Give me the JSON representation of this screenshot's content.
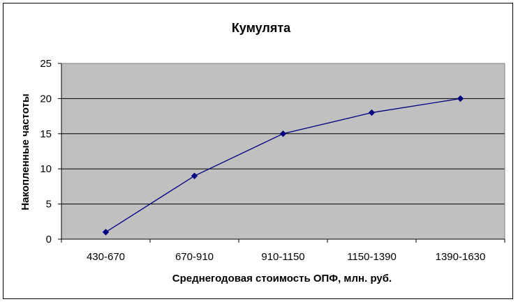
{
  "chart_data": {
    "type": "line",
    "title": "Кумулята",
    "xlabel": "Среднегодовая стоимость ОПФ, млн. руб.",
    "ylabel": "Накопленные частоты",
    "categories": [
      "430-670",
      "670-910",
      "910-1150",
      "1150-1390",
      "1390-1630"
    ],
    "series": [
      {
        "values": [
          1,
          9,
          15,
          18,
          20
        ]
      }
    ],
    "ylim": [
      0,
      25
    ],
    "yticks": [
      0,
      5,
      10,
      15,
      20,
      25
    ],
    "grid": true,
    "legend": "none",
    "colors": {
      "plot_background": "#c0c0c0",
      "line": "#000080",
      "marker": "#000080",
      "gridline": "#000000"
    }
  }
}
